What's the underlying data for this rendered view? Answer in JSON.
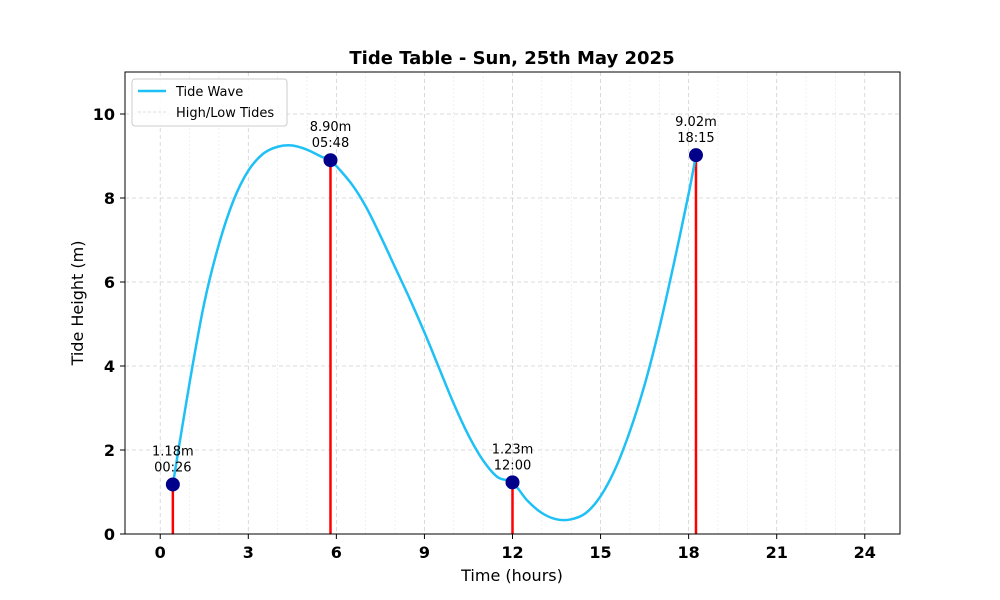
{
  "chart_data": {
    "type": "line",
    "title": "Tide Table - Sun, 25th May 2025",
    "xlabel": "Time (hours)",
    "ylabel": "Tide Height (m)",
    "xlim": [
      -1.2,
      25.2
    ],
    "ylim": [
      0,
      11
    ],
    "xticks": [
      0,
      3,
      6,
      9,
      12,
      15,
      18,
      21,
      24
    ],
    "yticks": [
      0,
      2,
      4,
      6,
      8,
      10
    ],
    "grid": true,
    "legend_position": "top-left",
    "series": [
      {
        "name": "Tide Wave",
        "color": "#1ec0f5",
        "x": [
          0.43,
          1.0,
          1.5,
          2.0,
          2.5,
          3.0,
          3.5,
          4.0,
          4.5,
          5.0,
          5.5,
          5.8,
          6.5,
          7.0,
          7.5,
          8.0,
          8.5,
          9.0,
          9.5,
          10.0,
          10.5,
          11.0,
          11.5,
          12.0,
          12.5,
          13.0,
          13.5,
          14.0,
          14.5,
          15.0,
          15.5,
          16.0,
          16.5,
          17.0,
          17.5,
          18.0,
          18.25
        ],
        "y": [
          1.18,
          3.6,
          5.5,
          6.9,
          7.95,
          8.65,
          9.05,
          9.22,
          9.25,
          9.15,
          8.98,
          8.9,
          8.35,
          7.8,
          7.1,
          6.35,
          5.6,
          4.8,
          3.95,
          3.1,
          2.35,
          1.75,
          1.35,
          1.23,
          0.8,
          0.5,
          0.35,
          0.35,
          0.5,
          0.9,
          1.55,
          2.45,
          3.55,
          4.9,
          6.45,
          8.1,
          9.02
        ]
      },
      {
        "name": "High/Low Tides",
        "color": "#ff0000",
        "marker_color": "#00008b",
        "x": [
          0.43,
          5.8,
          12.0,
          18.25
        ],
        "y": [
          1.18,
          8.9,
          1.23,
          9.02
        ]
      }
    ],
    "annotations": [
      {
        "height": "1.18m",
        "time": "00:26",
        "x": 0.43,
        "y": 1.18
      },
      {
        "height": "8.90m",
        "time": "05:48",
        "x": 5.8,
        "y": 8.9
      },
      {
        "height": "1.23m",
        "time": "12:00",
        "x": 12.0,
        "y": 1.23
      },
      {
        "height": "9.02m",
        "time": "18:15",
        "x": 18.25,
        "y": 9.02
      }
    ]
  }
}
